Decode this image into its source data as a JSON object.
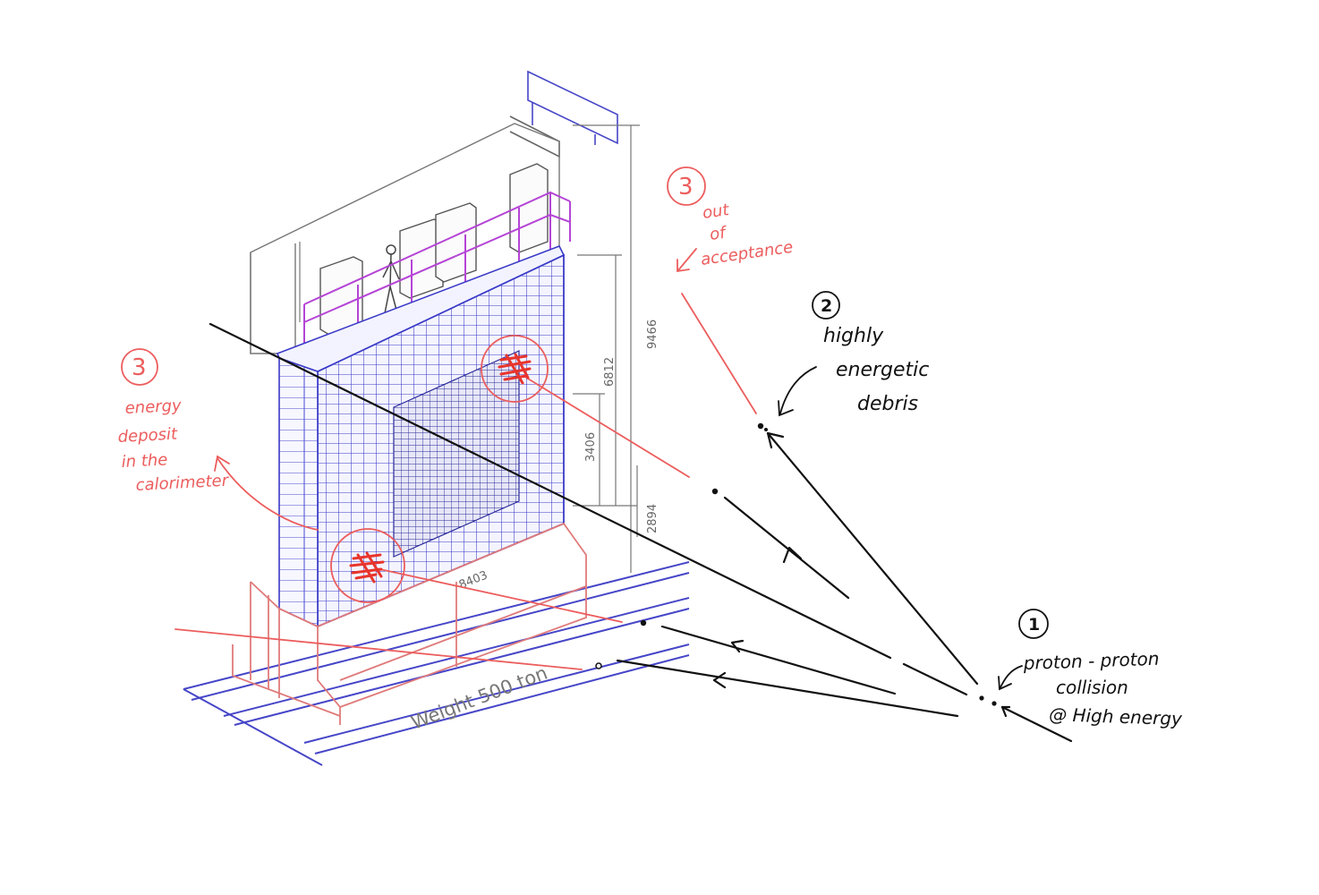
{
  "dimensions": {
    "total_height": "9466",
    "upper_height": "6812",
    "mid_height": "3406",
    "lower_height": "2894",
    "width": "8403"
  },
  "weight_label": "Weight  500 ton",
  "annotations": {
    "collision": {
      "number": "1",
      "lines": [
        "proton - proton",
        "collision",
        "@ High energy"
      ]
    },
    "debris": {
      "number": "2",
      "lines": [
        "highly",
        "energetic",
        "debris"
      ]
    },
    "calorimeter": {
      "number": "3",
      "lines": [
        "energy",
        "deposit",
        "in the",
        "calorimeter"
      ]
    },
    "acceptance": {
      "number": "3",
      "lines": [
        "out",
        "of",
        "acceptance"
      ]
    }
  },
  "colors": {
    "structure": "#3a3ac8",
    "frame": "#e07a7a",
    "platform": "#b544d6",
    "annotation_red": "#ec5d5d",
    "ink": "#111111"
  }
}
